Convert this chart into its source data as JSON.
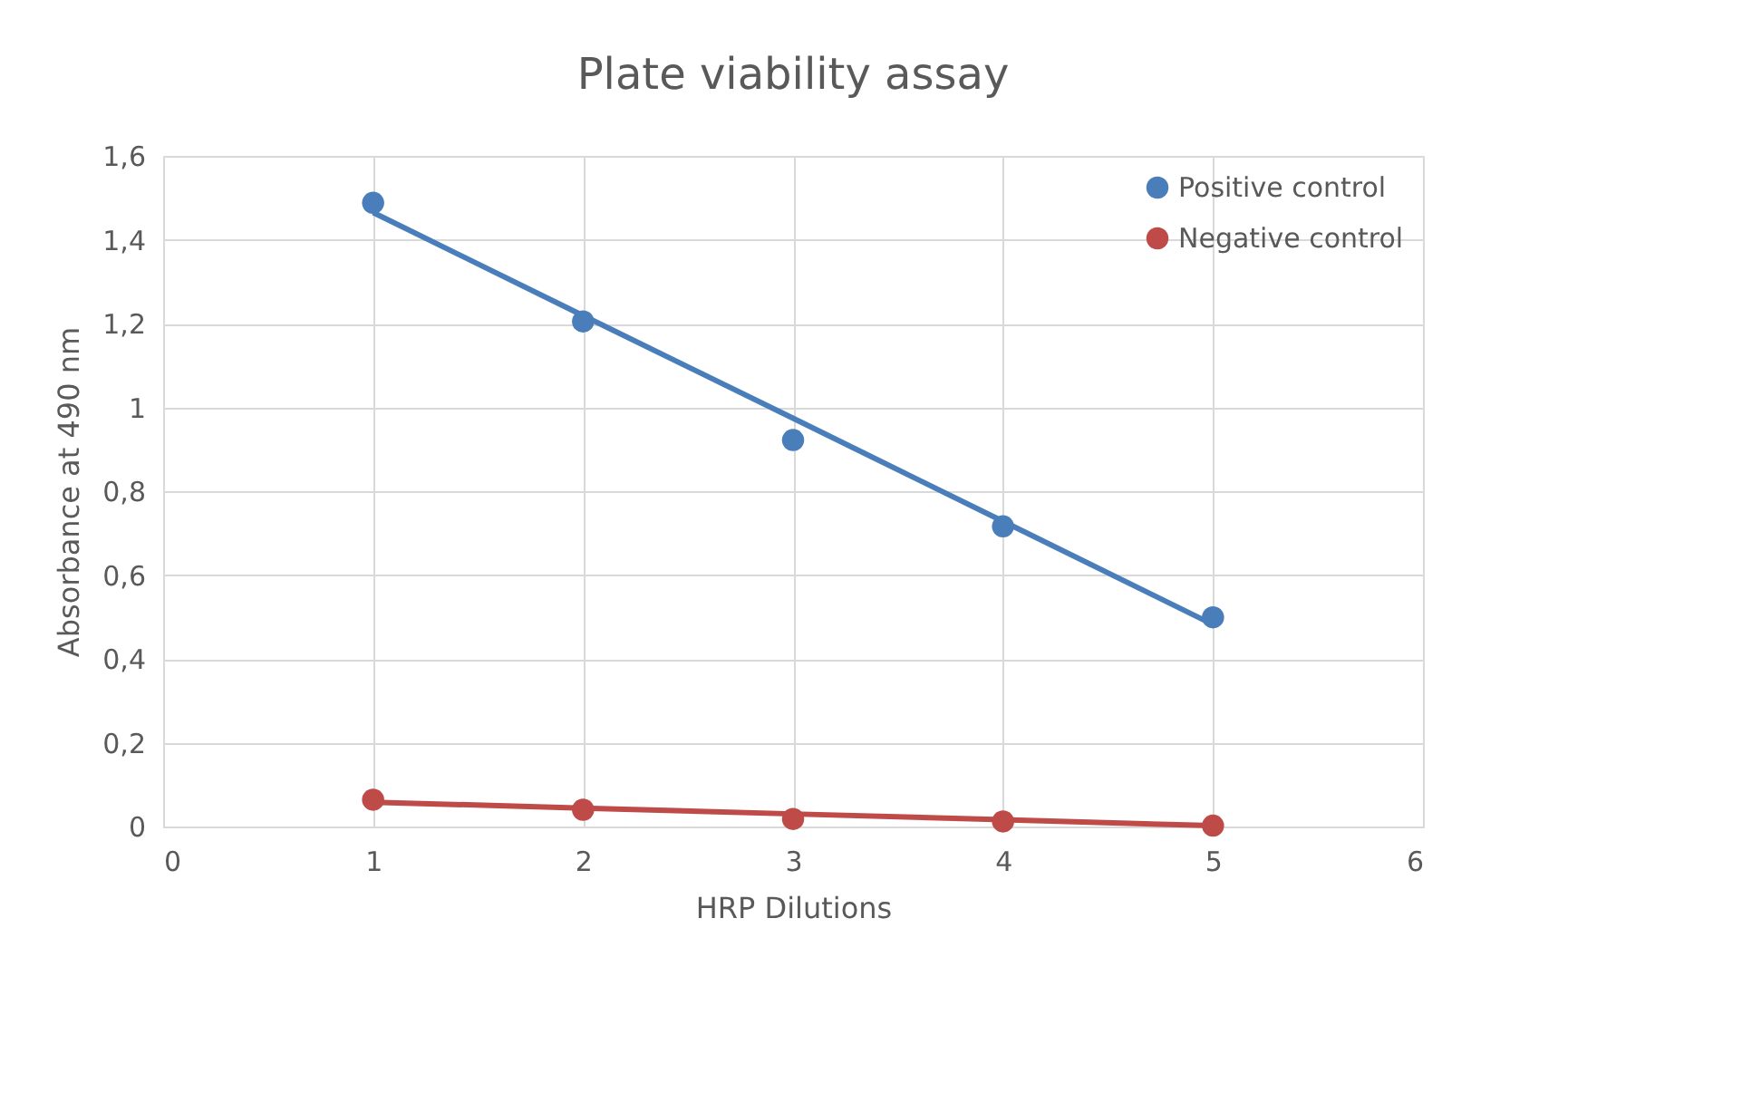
{
  "chart_data": {
    "type": "scatter",
    "title": "Plate viability assay",
    "xlabel": "HRP Dilutions",
    "ylabel": "Absorbance at 490 nm",
    "x": [
      1,
      2,
      3,
      4,
      5
    ],
    "series": [
      {
        "name": "Positive control",
        "color": "#4a7ebb",
        "values": [
          1.488,
          1.205,
          0.922,
          0.716,
          0.499
        ]
      },
      {
        "name": "Negative control",
        "color": "#be4b48",
        "values": [
          0.064,
          0.04,
          0.018,
          0.012,
          0.002
        ]
      },
      {
        "type": "line",
        "color": "#4a7ebb",
        "marker": "none",
        "values": [
          1.465,
          1.219,
          0.974,
          0.728,
          0.482
        ]
      },
      {
        "type": "line",
        "color": "#be4b48",
        "marker": "none",
        "values": [
          0.058,
          0.044,
          0.03,
          0.016,
          0.002
        ]
      }
    ],
    "xlim": [
      0,
      6
    ],
    "xticks": [
      0,
      1,
      2,
      3,
      4,
      5,
      6
    ],
    "ylim": [
      0,
      1.6
    ],
    "yticks": [
      0,
      {
        "value": 0.2,
        "label": "0,2"
      },
      {
        "value": 0.4,
        "label": "0,4"
      },
      {
        "value": 0.6,
        "label": "0,6"
      },
      {
        "value": 0.8,
        "label": "0,8"
      },
      1,
      {
        "value": 1.2,
        "label": "1,2"
      },
      {
        "value": 1.4,
        "label": "1,4"
      },
      {
        "value": 1.6,
        "label": "1,6"
      }
    ],
    "grid": true,
    "legend": "top right",
    "marker": "circle"
  }
}
